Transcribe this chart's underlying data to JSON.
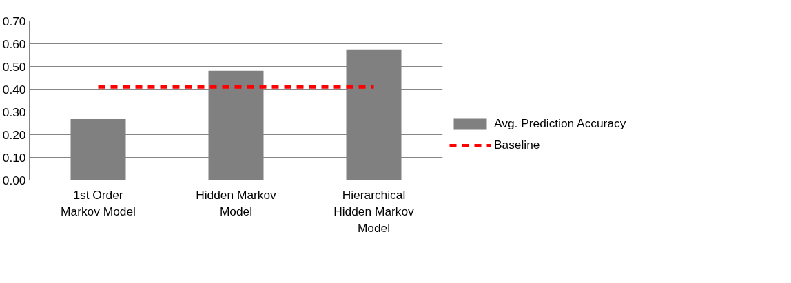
{
  "chart_data": {
    "type": "bar",
    "categories": [
      "1st Order Markov Model",
      "Hidden Markov Model",
      "Hierarchical Hidden Markov Model"
    ],
    "series": [
      {
        "name": "Avg. Prediction Accuracy",
        "color": "#808080",
        "values": [
          0.268,
          0.481,
          0.575
        ]
      },
      {
        "name": "Baseline",
        "type": "line",
        "color": "#ff0000",
        "line_style": "dashed",
        "values": [
          0.41,
          0.41,
          0.41
        ]
      }
    ],
    "ylim": [
      0,
      0.7
    ],
    "yticks": [
      {
        "value": 0,
        "label": "0.00"
      },
      {
        "value": 0.1,
        "label": "0.10"
      },
      {
        "value": 0.2,
        "label": "0.20"
      },
      {
        "value": 0.3,
        "label": "0.30"
      },
      {
        "value": 0.4,
        "label": "0.40"
      },
      {
        "value": 0.5,
        "label": "0.50"
      },
      {
        "value": 0.6,
        "label": "0.60"
      },
      {
        "value": 0.7,
        "label": "0.70"
      }
    ],
    "grid": "y",
    "legend": "right"
  }
}
